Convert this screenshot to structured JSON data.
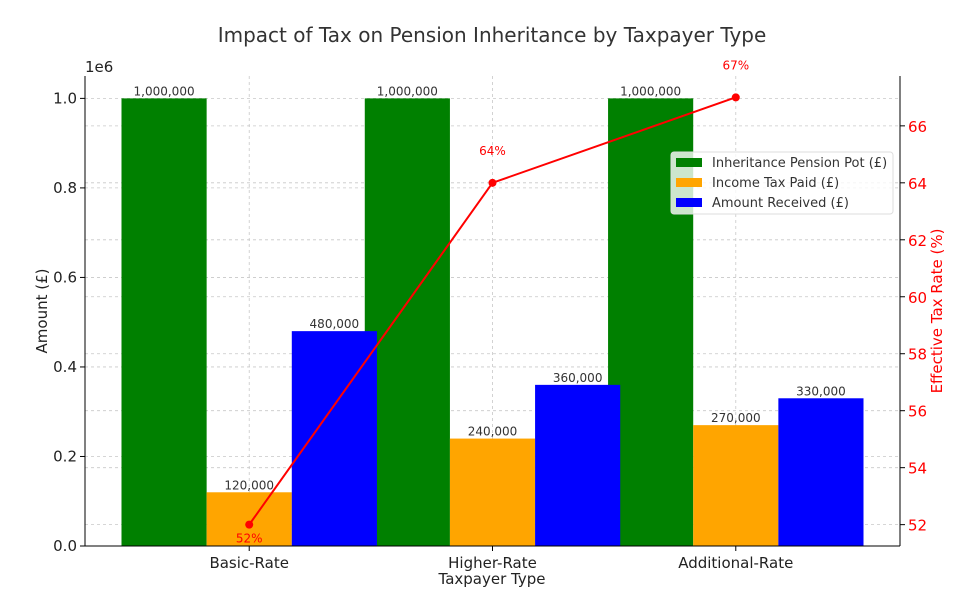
{
  "chart_data": {
    "type": "bar",
    "title": "Impact of Tax on Pension Inheritance by Taxpayer Type",
    "xlabel": "Taxpayer Type",
    "ylabel": "Amount (£)",
    "y_offset_label": "1e6",
    "ylim": [
      0,
      1050000
    ],
    "yticks": [
      0,
      0.2,
      0.4,
      0.6,
      0.8,
      1.0
    ],
    "ytick_labels": [
      "0.0",
      "0.2",
      "0.4",
      "0.6",
      "0.8",
      "1.0"
    ],
    "categories": [
      "Basic-Rate",
      "Higher-Rate",
      "Additional-Rate"
    ],
    "series": [
      {
        "name": "Inheritance Pension Pot (£)",
        "color": "#008000",
        "values": [
          1000000,
          1000000,
          1000000
        ],
        "labels": [
          "1,000,000",
          "1,000,000",
          "1,000,000"
        ]
      },
      {
        "name": "Income Tax Paid (£)",
        "color": "#FFA500",
        "values": [
          120000,
          240000,
          270000
        ],
        "labels": [
          "120,000",
          "240,000",
          "270,000"
        ]
      },
      {
        "name": "Amount Received (£)",
        "color": "#0000FF",
        "values": [
          480000,
          360000,
          330000
        ],
        "labels": [
          "480,000",
          "360,000",
          "330,000"
        ]
      }
    ],
    "secondary": {
      "type": "line",
      "name": "Effective Tax Rate (%)",
      "ylabel": "Effective Tax Rate (%)",
      "color": "#FF0000",
      "values": [
        52,
        64,
        67
      ],
      "labels": [
        "52%",
        "64%",
        "67%"
      ],
      "ylim": [
        51.25,
        67.75
      ],
      "yticks": [
        52,
        54,
        56,
        58,
        60,
        62,
        64,
        66
      ],
      "ytick_labels": [
        "52",
        "54",
        "56",
        "58",
        "60",
        "62",
        "64",
        "66"
      ]
    },
    "grid": true,
    "legend_position": "top-right"
  }
}
